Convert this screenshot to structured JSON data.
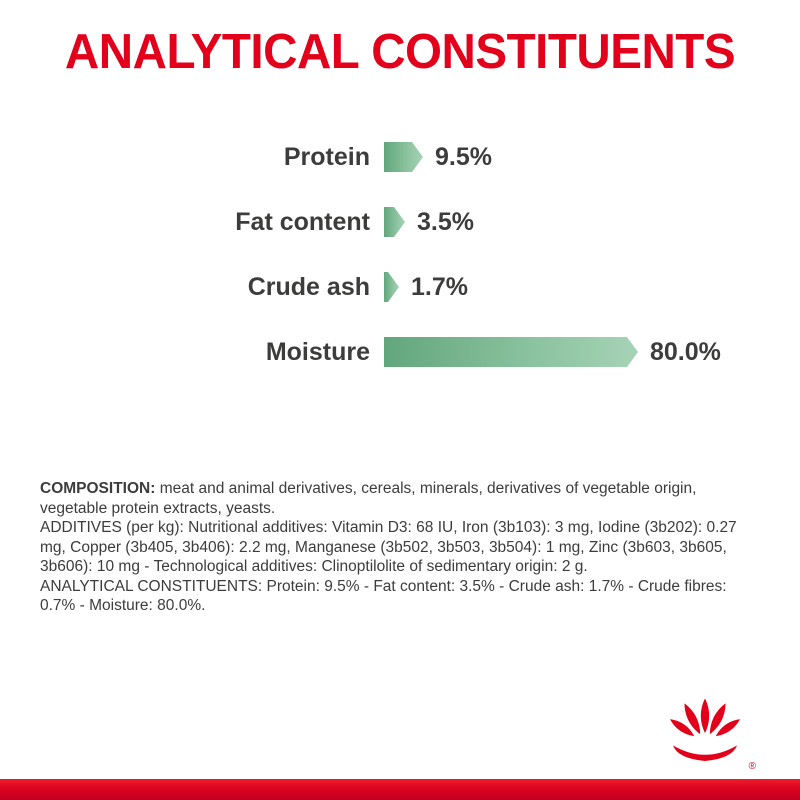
{
  "page": {
    "title": "ANALYTICAL CONSTITUENTS"
  },
  "chart_data": {
    "type": "bar",
    "orientation": "horizontal",
    "title": "ANALYTICAL CONSTITUENTS",
    "categories": [
      "Protein",
      "Fat content",
      "Crude ash",
      "Moisture"
    ],
    "values": [
      9.5,
      3.5,
      1.7,
      80.0
    ],
    "value_labels": [
      "9.5%",
      "3.5%",
      "1.7%",
      "80.0%"
    ],
    "xlim": [
      0,
      100
    ],
    "grid": false,
    "legend": "none",
    "bar_color_start": "#62a67d",
    "bar_color_end": "#a6d3b6"
  },
  "composition": {
    "heading": "COMPOSITION:",
    "text": " meat and animal derivatives, cereals, minerals, derivatives of vegetable origin, vegetable protein extracts, yeasts.",
    "additives": "ADDITIVES (per kg): Nutritional additives: Vitamin D3: 68 IU, Iron (3b103): 3 mg, Iodine (3b202): 0.27 mg, Copper (3b405, 3b406): 2.2 mg, Manganese (3b502, 3b503, 3b504): 1 mg, Zinc (3b603, 3b605, 3b606): 10 mg - Technological additives: Clinoptilolite of sedimentary origin: 2 g.",
    "analytical": "ANALYTICAL CONSTITUENTS: Protein: 9.5% - Fat content: 3.5% - Crude ash: 1.7% - Crude fibres: 0.7% - Moisture: 80.0%."
  },
  "branding": {
    "logo": "royal-canin-crown-icon",
    "registered_mark": "®"
  },
  "colors": {
    "title_red": "#e2001a",
    "text_dark": "#3c3c3b",
    "footer_red": "#dc0420"
  }
}
